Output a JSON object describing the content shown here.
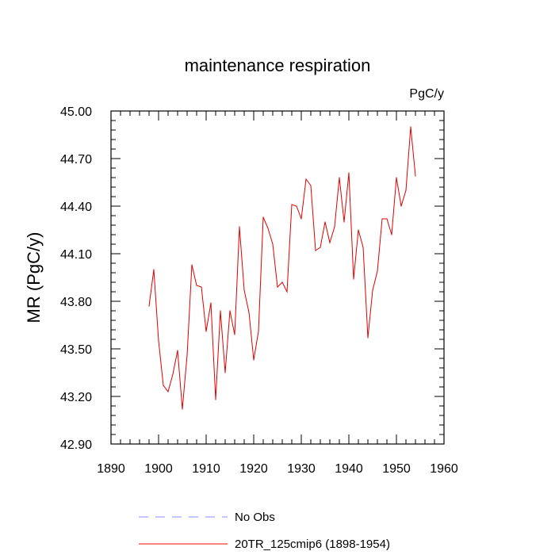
{
  "chart_data": {
    "type": "line",
    "title": "maintenance respiration",
    "units_label": "PgC/y",
    "ylabel": "MR  (PgC/y)",
    "xlabel": "",
    "xlim": [
      1890,
      1960
    ],
    "ylim": [
      42.9,
      45.0
    ],
    "x_ticks": [
      1890,
      1900,
      1910,
      1920,
      1930,
      1940,
      1950,
      1960
    ],
    "x_tick_labels": [
      "1890",
      "1900",
      "1910",
      "1920",
      "1930",
      "1940",
      "1950",
      "1960"
    ],
    "y_ticks": [
      42.9,
      43.2,
      43.5,
      43.8,
      44.1,
      44.4,
      44.7,
      45.0
    ],
    "y_tick_labels": [
      "42.90",
      "43.20",
      "43.50",
      "43.80",
      "44.10",
      "44.40",
      "44.70",
      "45.00"
    ],
    "grid": false,
    "legend": [
      {
        "label": "No Obs",
        "color": "#8c8cff",
        "dash": true
      },
      {
        "label": "20TR_125cmip6 (1898-1954)",
        "color": "#ff0000",
        "dash": false
      }
    ],
    "series": [
      {
        "name": "20TR_125cmip6 (1898-1954)",
        "color": "#e00000",
        "x": [
          1898,
          1899,
          1900,
          1901,
          1902,
          1903,
          1904,
          1905,
          1906,
          1907,
          1908,
          1909,
          1910,
          1911,
          1912,
          1913,
          1914,
          1915,
          1916,
          1917,
          1918,
          1919,
          1920,
          1921,
          1922,
          1923,
          1924,
          1925,
          1926,
          1927,
          1928,
          1929,
          1930,
          1931,
          1932,
          1933,
          1934,
          1935,
          1936,
          1937,
          1938,
          1939,
          1940,
          1941,
          1942,
          1943,
          1944,
          1945,
          1946,
          1947,
          1948,
          1949,
          1950,
          1951,
          1952,
          1953,
          1954
        ],
        "values": [
          43.77,
          44.0,
          43.55,
          43.27,
          43.23,
          43.34,
          43.49,
          43.12,
          43.46,
          44.03,
          43.9,
          43.89,
          43.61,
          43.79,
          43.18,
          43.74,
          43.35,
          43.74,
          43.59,
          44.27,
          43.87,
          43.73,
          43.43,
          43.61,
          44.33,
          44.26,
          44.16,
          43.89,
          43.92,
          43.86,
          44.41,
          44.4,
          44.32,
          44.57,
          44.53,
          44.12,
          44.14,
          44.3,
          44.17,
          44.27,
          44.58,
          44.3,
          44.61,
          43.94,
          44.25,
          44.14,
          43.57,
          43.87,
          43.99,
          44.32,
          44.32,
          44.22,
          44.58,
          44.4,
          44.5,
          44.9,
          44.59
        ]
      }
    ]
  }
}
